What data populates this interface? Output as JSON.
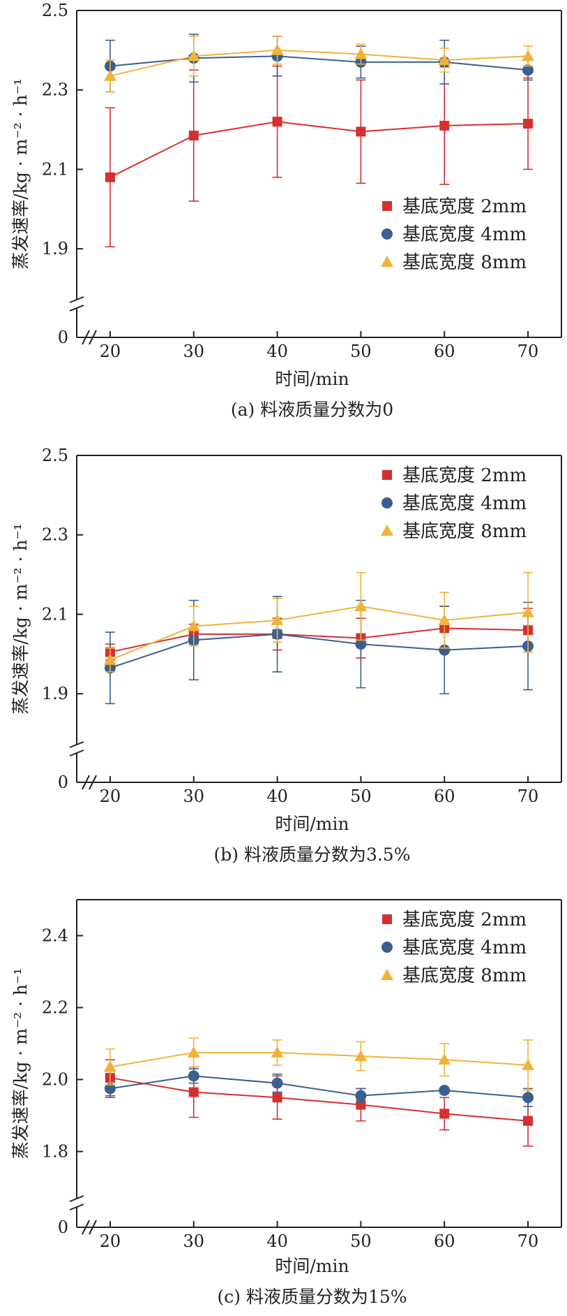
{
  "chart_data": [
    {
      "type": "line",
      "title": "",
      "caption": "(a) 料液质量分数为0",
      "xlabel": "时间/min",
      "ylabel": "蒸发速率/kg · m⁻² · h⁻¹",
      "x": [
        20,
        30,
        40,
        50,
        60,
        70
      ],
      "xticks": [
        "20",
        "30",
        "40",
        "50",
        "60",
        "70"
      ],
      "ylim": [
        1.8,
        2.5
      ],
      "yticks": [
        1.9,
        2.1,
        2.3,
        2.5
      ],
      "ytick_labels": [
        "1.9",
        "2.1",
        "2.3",
        "2.5"
      ],
      "axis_break": true,
      "zero_label": "0",
      "legend_position": "bottom-right",
      "series": [
        {
          "name": "基底宽度  2mm",
          "color": "#d62f2f",
          "marker": "square",
          "values": [
            2.08,
            2.185,
            2.22,
            2.195,
            2.21,
            2.215
          ],
          "errors": [
            0.175,
            0.165,
            0.14,
            0.13,
            0.148,
            0.115
          ]
        },
        {
          "name": "基底宽度  4mm",
          "color": "#3b5f91",
          "marker": "circle",
          "values": [
            2.36,
            2.38,
            2.385,
            2.37,
            2.37,
            2.35
          ],
          "errors": [
            0.065,
            0.06,
            0.05,
            0.04,
            0.055,
            0.025
          ]
        },
        {
          "name": "基底宽度  8mm",
          "color": "#efb33c",
          "marker": "triangle",
          "values": [
            2.335,
            2.385,
            2.4,
            2.39,
            2.375,
            2.385
          ],
          "errors": [
            0.04,
            0.05,
            0.035,
            0.025,
            0.03,
            0.025
          ]
        }
      ]
    },
    {
      "type": "line",
      "title": "",
      "caption": "(b) 料液质量分数为3.5%",
      "xlabel": "时间/min",
      "ylabel": "蒸发速率/kg · m⁻² · h⁻¹",
      "x": [
        20,
        30,
        40,
        50,
        60,
        70
      ],
      "xticks": [
        "20",
        "30",
        "40",
        "50",
        "60",
        "70"
      ],
      "ylim": [
        1.8,
        2.5
      ],
      "yticks": [
        1.9,
        2.1,
        2.3,
        2.5
      ],
      "ytick_labels": [
        "1.9",
        "2.1",
        "2.3",
        "2.5"
      ],
      "axis_break": true,
      "zero_label": "0",
      "legend_position": "top-right",
      "series": [
        {
          "name": "基底宽度  2mm",
          "color": "#d62f2f",
          "marker": "square",
          "values": [
            2.005,
            2.05,
            2.05,
            2.04,
            2.065,
            2.06
          ],
          "errors": [
            0.02,
            0.025,
            0.04,
            0.05,
            0.055,
            0.055
          ]
        },
        {
          "name": "基底宽度  4mm",
          "color": "#3b5f91",
          "marker": "circle",
          "values": [
            1.965,
            2.035,
            2.05,
            2.025,
            2.01,
            2.02
          ],
          "errors": [
            0.09,
            0.1,
            0.095,
            0.11,
            0.11,
            0.11
          ]
        },
        {
          "name": "基底宽度  8mm",
          "color": "#efb33c",
          "marker": "triangle",
          "values": [
            1.985,
            2.07,
            2.085,
            2.12,
            2.085,
            2.105
          ],
          "errors": [
            0.03,
            0.05,
            0.055,
            0.085,
            0.07,
            0.1
          ]
        }
      ]
    },
    {
      "type": "line",
      "title": "",
      "caption": "(c) 料液质量分数为15%",
      "xlabel": "时间/min",
      "ylabel": "蒸发速率/kg · m⁻² · h⁻¹",
      "x": [
        20,
        30,
        40,
        50,
        60,
        70
      ],
      "xticks": [
        "20",
        "30",
        "40",
        "50",
        "60",
        "70"
      ],
      "ylim": [
        1.7,
        2.5
      ],
      "yticks": [
        1.8,
        2.0,
        2.2,
        2.4
      ],
      "ytick_labels": [
        "1.8",
        "2.0",
        "2.2",
        "2.4"
      ],
      "axis_break": true,
      "zero_label": "0",
      "legend_position": "top-right",
      "series": [
        {
          "name": "基底宽度  2mm",
          "color": "#d62f2f",
          "marker": "square",
          "values": [
            2.005,
            1.965,
            1.95,
            1.93,
            1.905,
            1.885
          ],
          "errors": [
            0.05,
            0.07,
            0.06,
            0.045,
            0.045,
            0.07
          ]
        },
        {
          "name": "基底宽度  4mm",
          "color": "#3b5f91",
          "marker": "circle",
          "values": [
            1.975,
            2.01,
            1.99,
            1.955,
            1.97,
            1.95
          ],
          "errors": [
            0.025,
            0.02,
            0.025,
            0.02,
            0.005,
            0.025
          ]
        },
        {
          "name": "基底宽度  8mm",
          "color": "#efb33c",
          "marker": "triangle",
          "values": [
            2.035,
            2.075,
            2.075,
            2.065,
            2.055,
            2.04
          ],
          "errors": [
            0.05,
            0.04,
            0.035,
            0.04,
            0.045,
            0.07
          ]
        }
      ]
    }
  ]
}
